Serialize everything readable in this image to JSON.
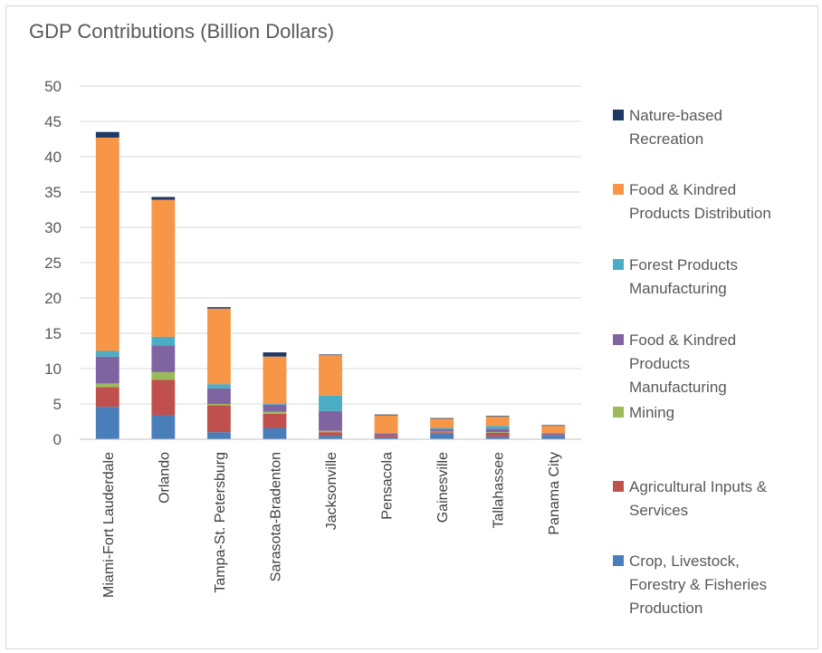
{
  "chart_data": {
    "type": "bar",
    "stacked": true,
    "title": "GDP Contributions (Billion Dollars)",
    "xlabel": "",
    "ylabel": "",
    "ylim": [
      0,
      50
    ],
    "yticks": [
      0,
      5,
      10,
      15,
      20,
      25,
      30,
      35,
      40,
      45,
      50
    ],
    "grid": true,
    "legend_position": "right",
    "categories": [
      "Miami-Fort Lauderdale",
      "Orlando",
      "Tampa-St. Petersburg",
      "Sarasota-Bradenton",
      "Jacksonville",
      "Pensacola",
      "Gainesville",
      "Tallahassee",
      "Panama City"
    ],
    "series": [
      {
        "name": "Crop, Livestock, Forestry & Fisheries Production",
        "color": "#4a7ebb",
        "values": [
          4.6,
          3.4,
          1.0,
          1.6,
          0.5,
          0.3,
          0.8,
          0.4,
          0.5
        ]
      },
      {
        "name": "Agricultural Inputs & Services",
        "color": "#c0504d",
        "values": [
          2.8,
          5.0,
          3.8,
          2.0,
          0.5,
          0.3,
          0.2,
          0.5,
          0.1
        ]
      },
      {
        "name": "Mining",
        "color": "#9bbb59",
        "values": [
          0.5,
          1.1,
          0.2,
          0.3,
          0.2,
          0.0,
          0.1,
          0.1,
          0.0
        ]
      },
      {
        "name": "Food & Kindred Products Manufacturing",
        "color": "#8064a2",
        "values": [
          3.8,
          3.8,
          2.2,
          1.0,
          2.8,
          0.2,
          0.3,
          0.5,
          0.2
        ]
      },
      {
        "name": "Forest Products Manufacturing",
        "color": "#4bacc6",
        "values": [
          0.8,
          1.2,
          0.6,
          0.1,
          2.2,
          0.1,
          0.2,
          0.4,
          0.1
        ]
      },
      {
        "name": "Food & Kindred Products Distribution",
        "color": "#f79646",
        "values": [
          30.2,
          19.4,
          10.7,
          6.7,
          5.7,
          2.5,
          1.3,
          1.3,
          1.0
        ]
      },
      {
        "name": "Nature-based Recreation",
        "color": "#1f3864",
        "values": [
          0.8,
          0.4,
          0.2,
          0.6,
          0.1,
          0.1,
          0.1,
          0.1,
          0.1
        ]
      }
    ],
    "legend": [
      {
        "series": 6,
        "lines": [
          "Nature-based",
          "Recreation"
        ]
      },
      {
        "series": 5,
        "lines": [
          "Food & Kindred",
          "Products Distribution"
        ]
      },
      {
        "series": 4,
        "lines": [
          "Forest Products",
          "Manufacturing"
        ]
      },
      {
        "series": 3,
        "lines": [
          "Food & Kindred",
          "Products",
          "Manufacturing"
        ]
      },
      {
        "series": 2,
        "lines": [
          "Mining"
        ]
      },
      {
        "series": 1,
        "lines": [
          "Agricultural Inputs &",
          "Services"
        ]
      },
      {
        "series": 0,
        "lines": [
          "Crop, Livestock,",
          "Forestry & Fisheries",
          "Production"
        ]
      }
    ]
  }
}
